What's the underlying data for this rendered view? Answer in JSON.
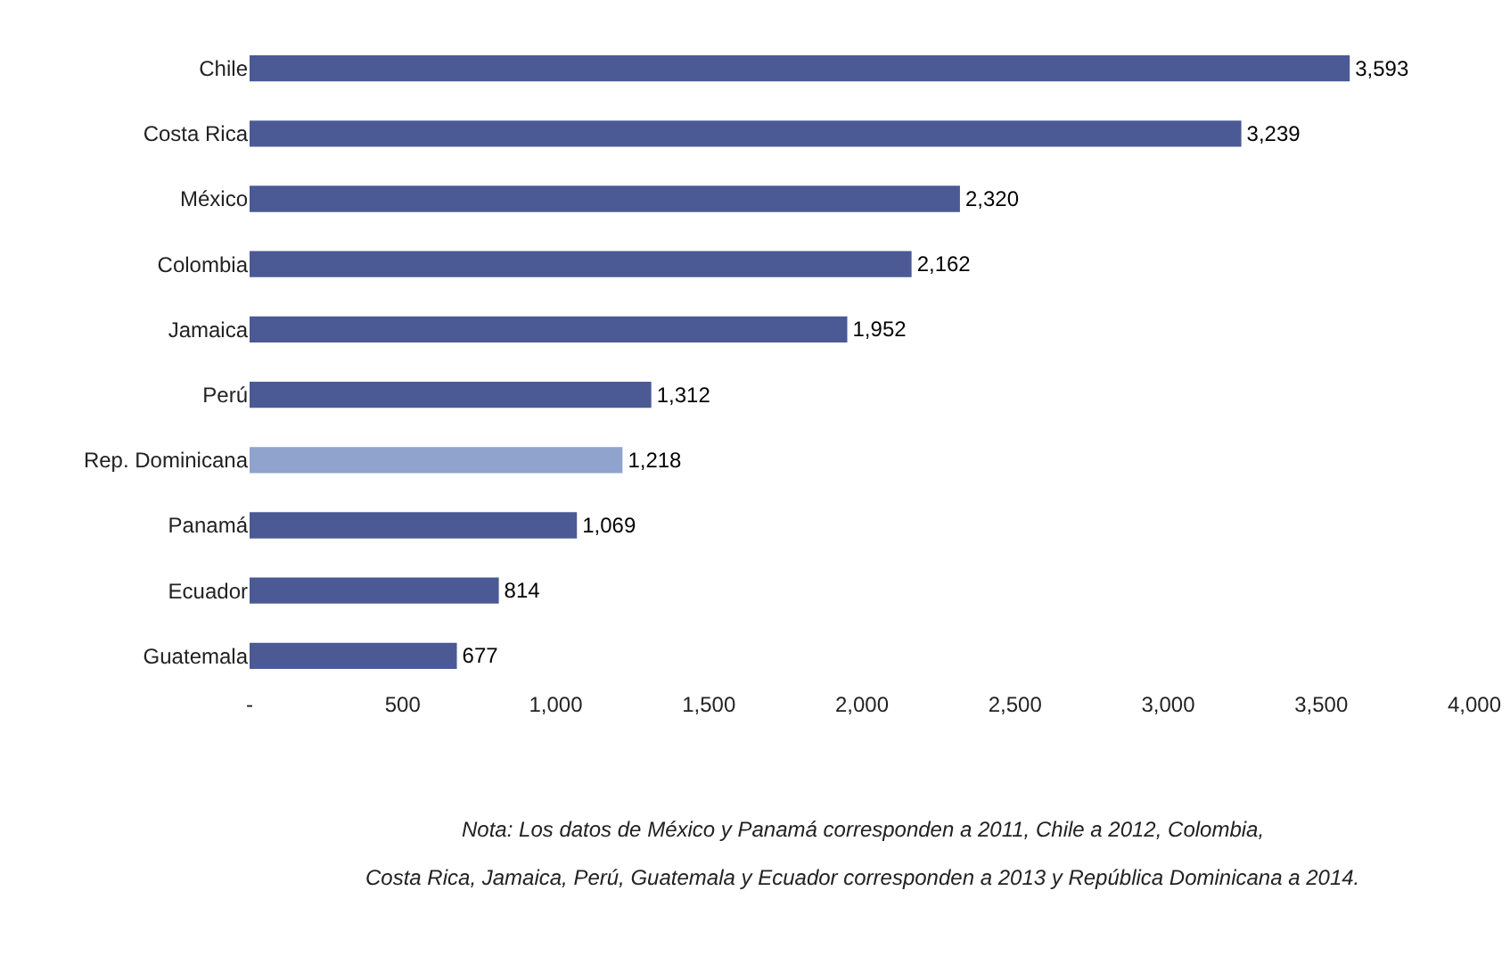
{
  "chart_data": {
    "type": "bar",
    "orientation": "horizontal",
    "categories": [
      "Chile",
      "Costa Rica",
      "México",
      "Colombia",
      "Jamaica",
      "Perú",
      "Rep. Dominicana",
      "Panamá",
      "Ecuador",
      "Guatemala"
    ],
    "values": [
      3593,
      3239,
      2320,
      2162,
      1952,
      1312,
      1218,
      1069,
      814,
      677
    ],
    "value_labels": [
      "3,593",
      "3,239",
      "2,320",
      "2,162",
      "1,952",
      "1,312",
      "1,218",
      "1,069",
      "814",
      "677"
    ],
    "colors": [
      "#4b5a95",
      "#4b5a95",
      "#4b5a95",
      "#4b5a95",
      "#4b5a95",
      "#4b5a95",
      "#8fa3cd",
      "#4b5a95",
      "#4b5a95",
      "#4b5a95"
    ],
    "xlim": [
      0,
      4000
    ],
    "xticks": [
      {
        "value": 0,
        "label": "-"
      },
      500,
      {
        "value": 1000,
        "label": "1,000"
      },
      {
        "value": 1500,
        "label": "1,500"
      },
      {
        "value": 2000,
        "label": "2,000"
      },
      {
        "value": 2500,
        "label": "2,500"
      },
      {
        "value": 3000,
        "label": "3,000"
      },
      {
        "value": 3500,
        "label": "3,500"
      },
      {
        "value": 4000,
        "label": "4,000"
      }
    ],
    "grid": false,
    "annotations": [
      "Nota: Los datos de México y Panamá corresponden a 2011, Chile a 2012, Colombia,",
      "Costa Rica, Jamaica, Perú, Guatemala y Ecuador corresponden a 2013 y República Dominicana a 2014."
    ]
  }
}
